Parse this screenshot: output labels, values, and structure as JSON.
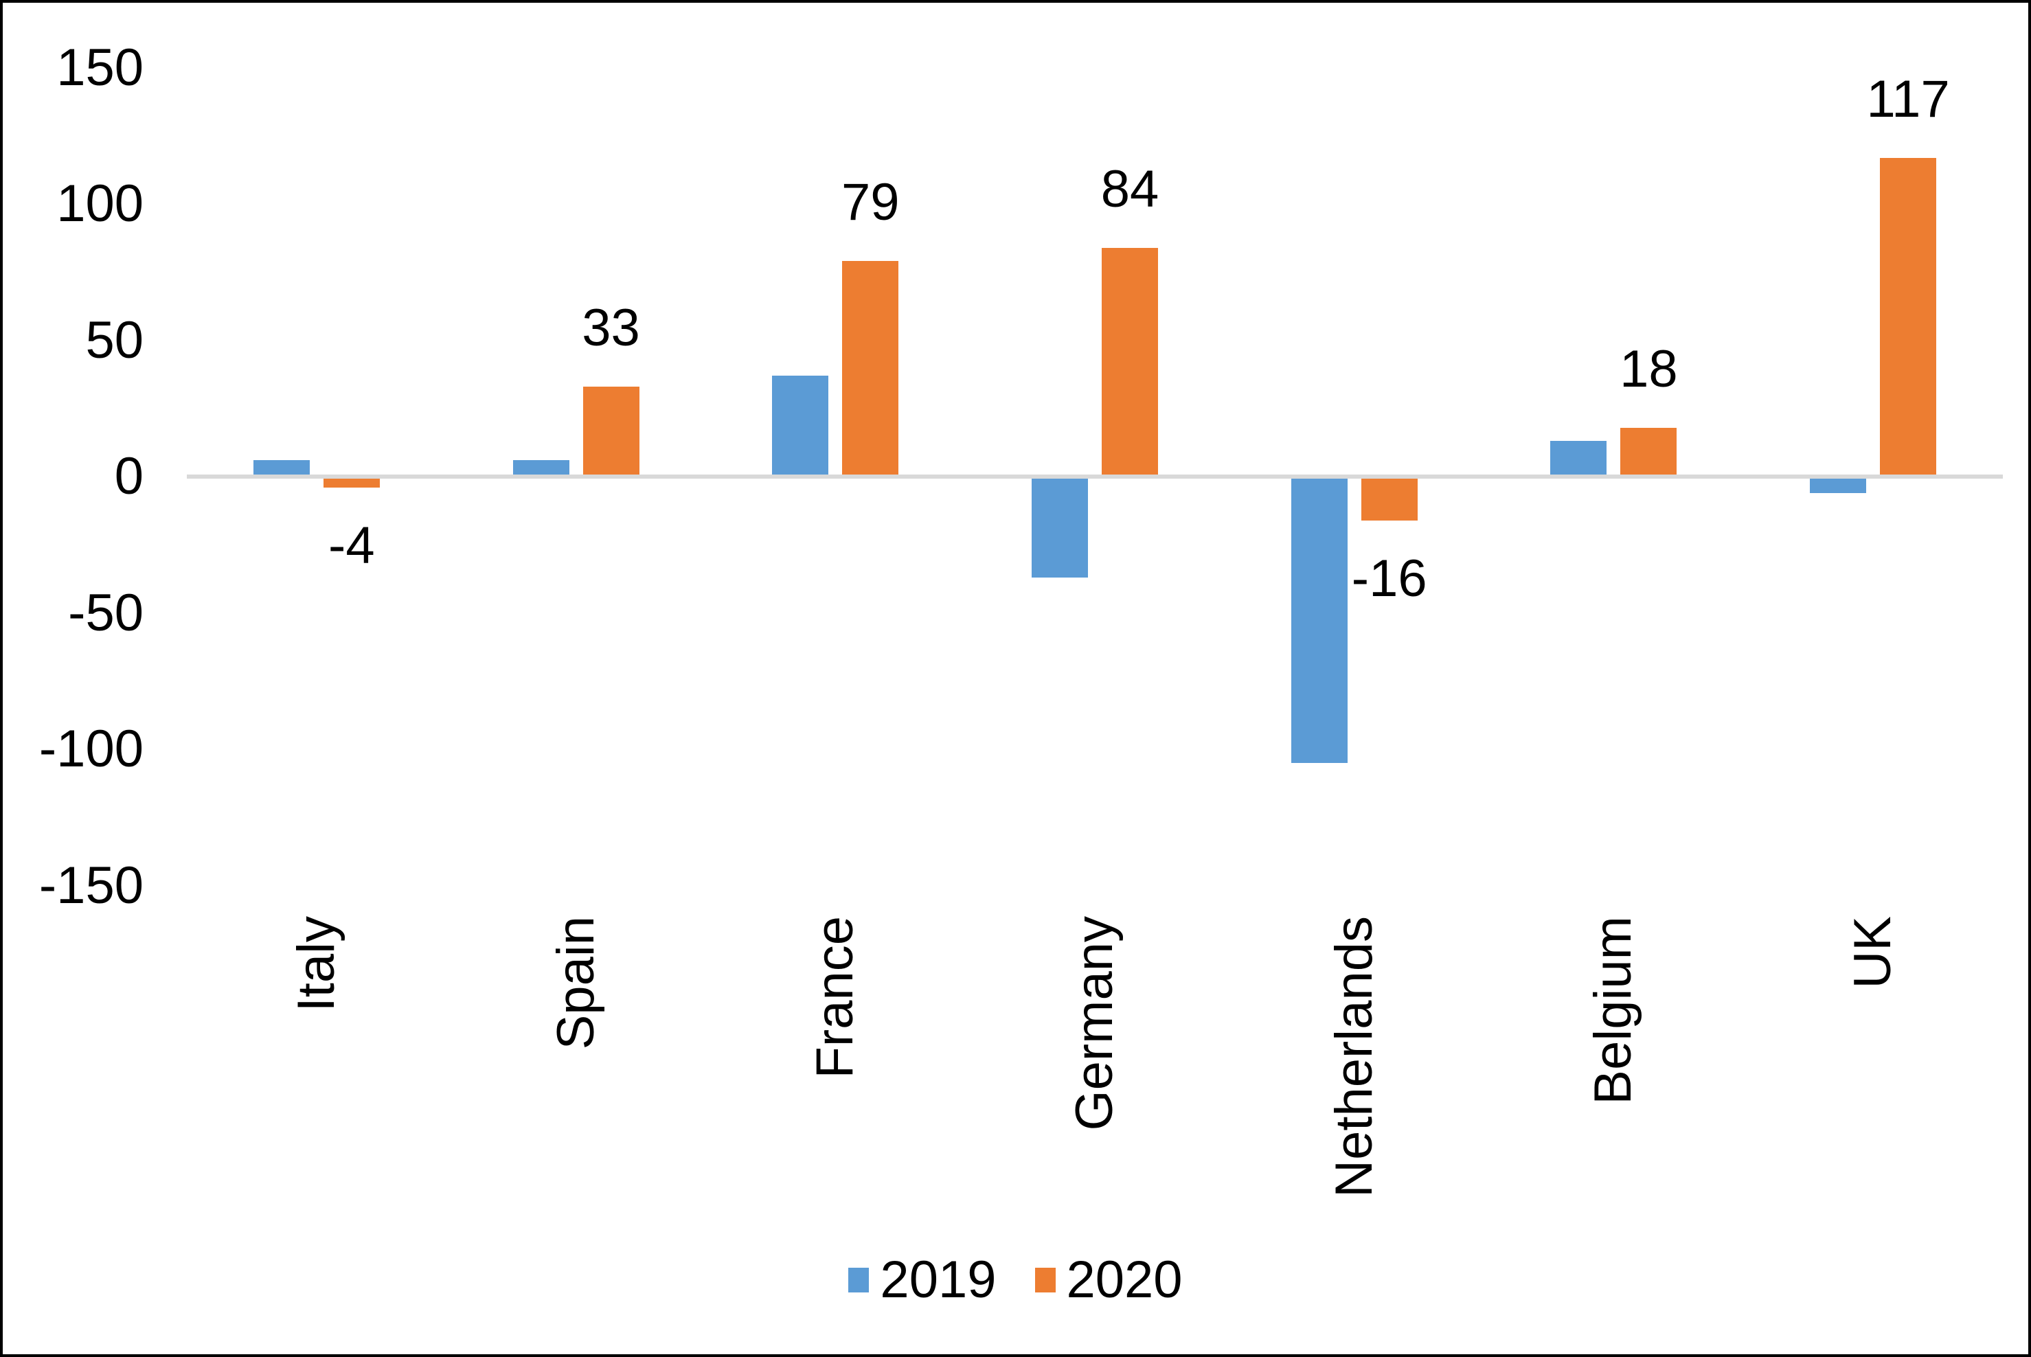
{
  "chart_data": {
    "type": "bar",
    "title": "",
    "xlabel": "",
    "ylabel": "",
    "categories": [
      "Italy",
      "Spain",
      "France",
      "Germany",
      "Netherlands",
      "Belgium",
      "UK"
    ],
    "series": [
      {
        "name": "2019",
        "color": "#5B9BD5",
        "values": [
          6,
          6,
          37,
          -37,
          -105,
          13,
          -6
        ],
        "data_labels": null
      },
      {
        "name": "2020",
        "color": "#ED7D31",
        "values": [
          -4,
          33,
          79,
          84,
          -16,
          18,
          117
        ],
        "data_labels": [
          "-4",
          "33",
          "79",
          "84",
          "-16",
          "18",
          "117"
        ]
      }
    ],
    "ylim": [
      -150,
      150
    ],
    "yticks": [
      150,
      100,
      50,
      0,
      -50,
      -100,
      -150
    ],
    "grid": false,
    "legend_position": "bottom",
    "legend_entries": [
      "2019",
      "2020"
    ],
    "axis_line_color": "#D9D9D9",
    "text_color": "#000000",
    "background_color": "#FFFFFF"
  }
}
